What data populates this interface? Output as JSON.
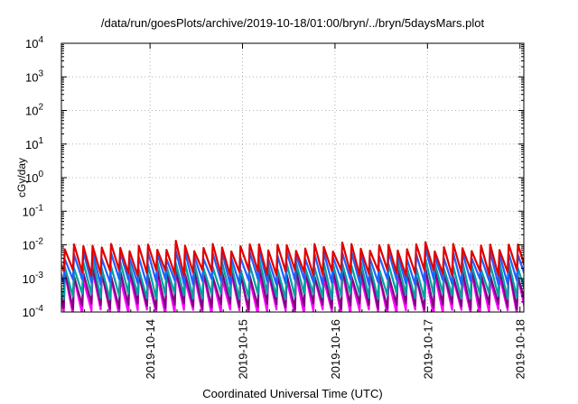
{
  "chart_data": {
    "type": "line",
    "title": "/data/run/goesPlots/archive/2019-10-18/01:00/bryn/../bryn/5daysMars.plot",
    "xlabel": "Coordinated Universal Time (UTC)",
    "ylabel": "cGy/day",
    "yscale": "log",
    "ylim": [
      0.0001,
      10000
    ],
    "xlim": [
      "2019-10-13 01:00",
      "2019-10-18 01:00"
    ],
    "grid": true,
    "legend": "none",
    "x_ticks": [
      "2019-10-14",
      "2019-10-15",
      "2019-10-16",
      "2019-10-17",
      "2019-10-18"
    ],
    "y_ticks": [
      {
        "base": "10",
        "exp": "-4"
      },
      {
        "base": "10",
        "exp": "-3"
      },
      {
        "base": "10",
        "exp": "-2"
      },
      {
        "base": "10",
        "exp": "-1"
      },
      {
        "base": "10",
        "exp": "0"
      },
      {
        "base": "10",
        "exp": "1"
      },
      {
        "base": "10",
        "exp": "2"
      },
      {
        "base": "10",
        "exp": "3"
      },
      {
        "base": "10",
        "exp": "4"
      }
    ],
    "sawtooth_period_hours": 2.4,
    "series": [
      {
        "color": "#ff00ff",
        "low": 0.0001,
        "high": 0.0012
      },
      {
        "color": "#800080",
        "low": 0.00015,
        "high": 0.0015
      },
      {
        "color": "#00a0a0",
        "low": 0.0003,
        "high": 0.0025
      },
      {
        "color": "#2060ff",
        "low": 0.0008,
        "high": 0.005
      },
      {
        "color": "#e00000",
        "low": 0.0015,
        "high": 0.0085
      }
    ]
  }
}
